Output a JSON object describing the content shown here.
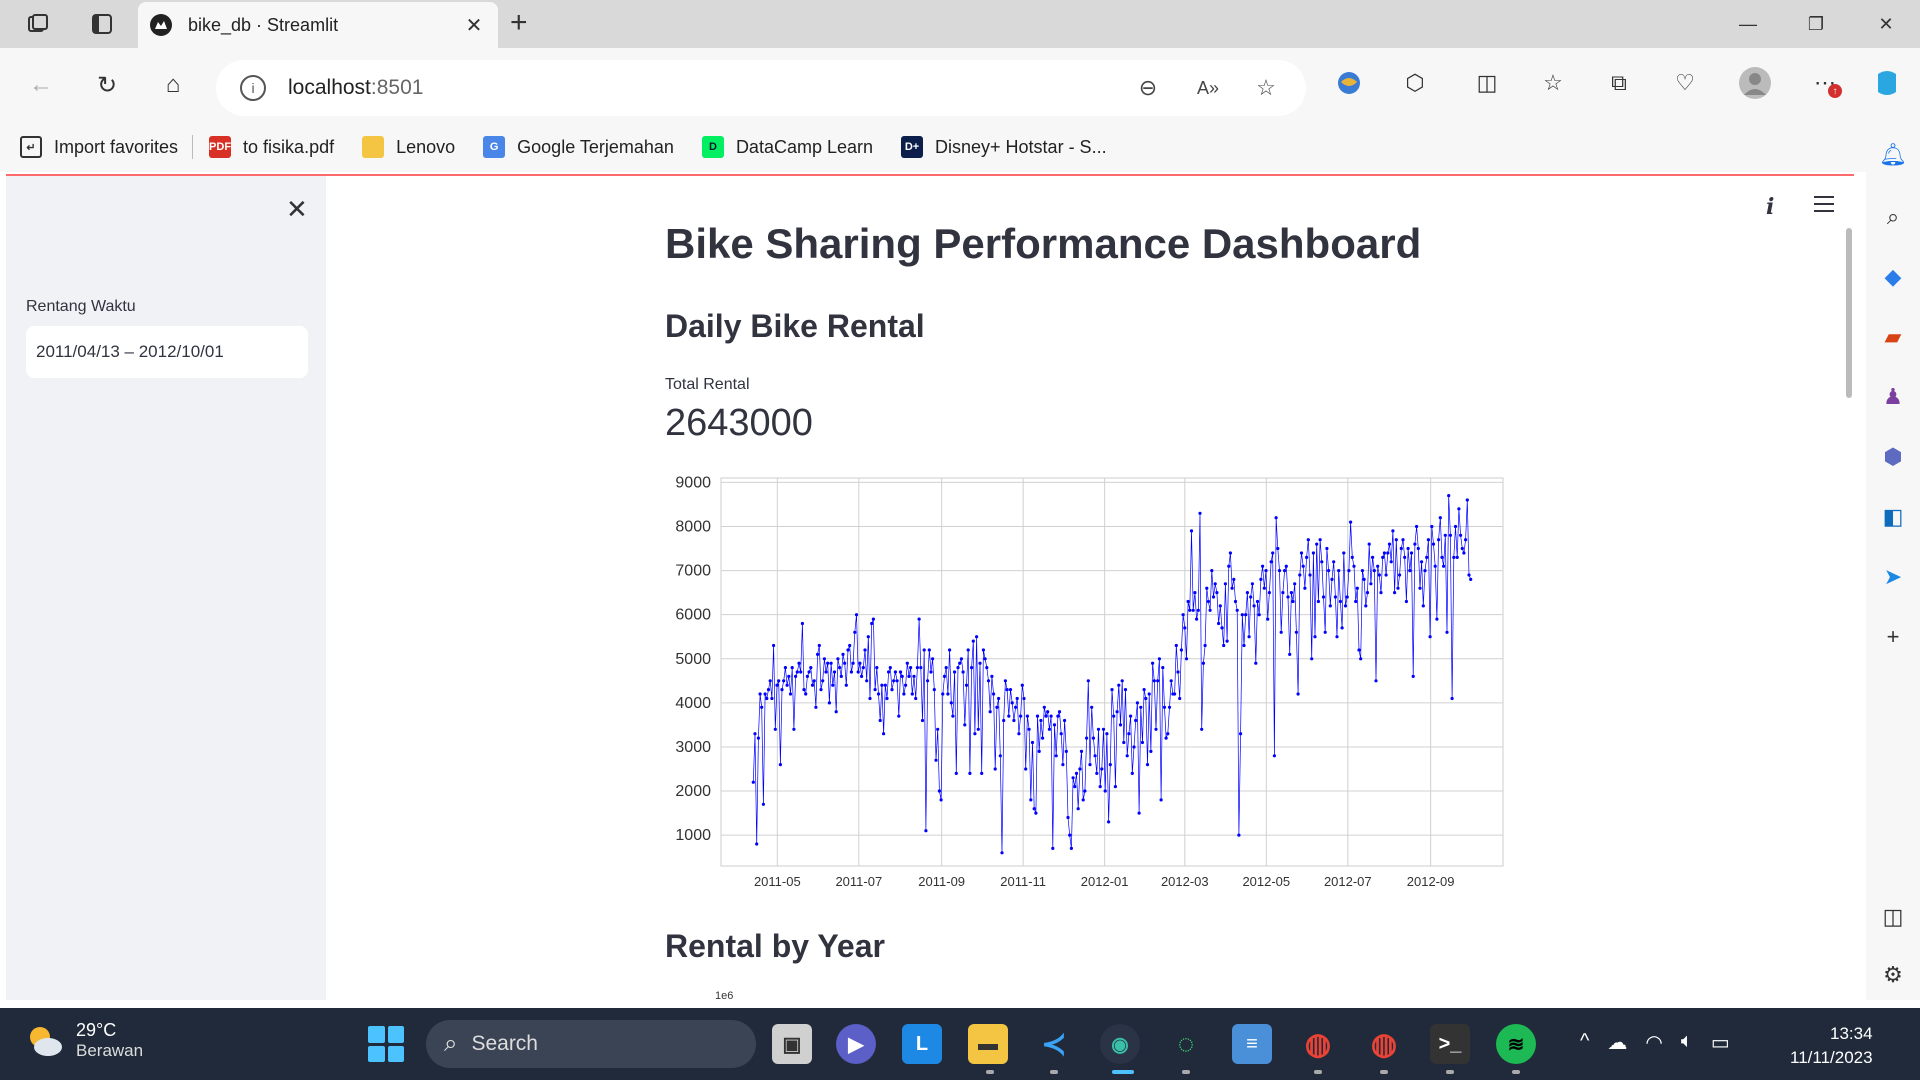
{
  "browser": {
    "tab_title": "bike_db · Streamlit",
    "url_host": "localhost",
    "url_port": ":8501",
    "bookmarks": [
      {
        "label": "Import favorites",
        "icon": "import-icon"
      },
      {
        "label": "to fisika.pdf",
        "icon": "pdf-icon"
      },
      {
        "label": "Lenovo",
        "icon": "folder-icon"
      },
      {
        "label": "Google Terjemahan",
        "icon": "google-translate-icon"
      },
      {
        "label": "DataCamp Learn",
        "icon": "datacamp-icon"
      },
      {
        "label": "Disney+ Hotstar - S...",
        "icon": "hotstar-icon"
      }
    ]
  },
  "sidebar": {
    "label": "Rentang Waktu",
    "date_range": "2011/04/13 – 2012/10/01"
  },
  "main": {
    "title": "Bike Sharing Performance Dashboard",
    "section_daily": "Daily Bike Rental",
    "metric_label": "Total Rental",
    "metric_value": "2643000",
    "section_year": "Rental by Year",
    "year_chart_offset": "1e6"
  },
  "chart_data": {
    "type": "line",
    "title": "",
    "xlabel": "",
    "ylabel": "",
    "x_start": "2011-04-13",
    "x_end": "2012-10-01",
    "x_tick_labels": [
      "2011-05",
      "2011-07",
      "2011-09",
      "2011-11",
      "2012-01",
      "2012-03",
      "2012-05",
      "2012-07",
      "2012-09"
    ],
    "y_ticks": [
      1000,
      2000,
      3000,
      4000,
      5000,
      6000,
      7000,
      8000,
      9000
    ],
    "ylim": [
      300,
      9100
    ],
    "grid": true,
    "marker": "o",
    "color": "#0000ff",
    "series": [
      {
        "values": [
          2200,
          3300,
          800,
          3200,
          4200,
          3900,
          1700,
          4200,
          4100,
          4300,
          4500,
          4100,
          5300,
          3400,
          4400,
          4500,
          2600,
          4300,
          4500,
          4800,
          4400,
          4600,
          4200,
          4800,
          3400,
          4600,
          4700,
          4900,
          4700,
          5800,
          4300,
          4200,
          4600,
          4700,
          4800,
          4400,
          4500,
          3900,
          5100,
          5300,
          4300,
          4500,
          5000,
          4700,
          4900,
          4000,
          4900,
          4400,
          4700,
          3800,
          5000,
          4800,
          4600,
          5100,
          4900,
          4400,
          5200,
          5300,
          4700,
          4900,
          5600,
          6000,
          4700,
          4900,
          4600,
          4800,
          5200,
          4500,
          5500,
          4100,
          5800,
          5900,
          4300,
          4800,
          4200,
          3600,
          4400,
          3300,
          4400,
          4100,
          4700,
          4800,
          4300,
          4500,
          4700,
          4500,
          3700,
          4700,
          4600,
          4200,
          4400,
          4900,
          4600,
          4800,
          4200,
          4600,
          4100,
          4800,
          5900,
          4800,
          3600,
          5200,
          1100,
          4500,
          5200,
          4700,
          5000,
          4300,
          2700,
          3400,
          2000,
          1800,
          4200,
          4600,
          4800,
          4200,
          5200,
          4000,
          3700,
          4700,
          2400,
          4800,
          4900,
          5000,
          4700,
          3500,
          4400,
          5200,
          2400,
          4800,
          5400,
          3300,
          5500,
          3400,
          4900,
          2400,
          5200,
          5000,
          4800,
          4500,
          3800,
          4600,
          4200,
          2500,
          3900,
          4100,
          2800,
          600,
          3600,
          4500,
          4300,
          3700,
          4300,
          4000,
          3600,
          3900,
          4100,
          3300,
          3700,
          4400,
          4100,
          2500,
          3700,
          3400,
          1800,
          3100,
          1600,
          1500,
          3700,
          2900,
          3600,
          3200,
          3900,
          3700,
          3800,
          3400,
          3700,
          700,
          3500,
          2800,
          3700,
          3800,
          3300,
          2600,
          3600,
          2900,
          1400,
          1000,
          700,
          2300,
          2100,
          2400,
          1600,
          2500,
          2900,
          1800,
          2000,
          3200,
          4500,
          2600,
          3900,
          3200,
          2800,
          2400,
          3400,
          2100,
          2500,
          3400,
          2000,
          3300,
          1300,
          2600,
          4300,
          3700,
          2100,
          3800,
          4400,
          3500,
          4500,
          3100,
          4300,
          2800,
          3300,
          3700,
          2400,
          3000,
          3600,
          4000,
          1500,
          3900,
          3100,
          4300,
          4100,
          2600,
          4200,
          2900,
          4900,
          4500,
          3400,
          4500,
          5000,
          1800,
          4800,
          3900,
          3200,
          3300,
          3900,
          4500,
          4200,
          4200,
          5300,
          4700,
          4100,
          5200,
          6000,
          5700,
          5000,
          6300,
          6100,
          7900,
          6100,
          6500,
          5900,
          6100,
          8300,
          3400,
          4900,
          5300,
          6600,
          6300,
          6100,
          7000,
          6400,
          6700,
          6500,
          5800,
          6200,
          5700,
          5300,
          6700,
          5400,
          7100,
          7400,
          6600,
          6800,
          6300,
          6100,
          1000,
          3300,
          6000,
          5300,
          6000,
          6500,
          5500,
          6400,
          6700,
          6200,
          4900,
          6300,
          6000,
          6800,
          7100,
          6600,
          7000,
          5900,
          6500,
          7200,
          7400,
          2800,
          8200,
          7500,
          7000,
          5600,
          6500,
          7000,
          7100,
          6400,
          5100,
          6500,
          6300,
          6700,
          5600,
          4200,
          6900,
          7400,
          7100,
          6600,
          7300,
          7700,
          6900,
          5000,
          7400,
          5500,
          7600,
          6300,
          7700,
          7200,
          6400,
          5600,
          7500,
          7000,
          6200,
          6800,
          7200,
          6400,
          5500,
          7000,
          6300,
          5700,
          7400,
          6200,
          6400,
          7000,
          8100,
          7300,
          7100,
          6300,
          6600,
          5200,
          5000,
          7000,
          6800,
          6200,
          6500,
          7600,
          6700,
          7300,
          7000,
          4500,
          7100,
          6900,
          6500,
          7300,
          7400,
          6900,
          7400,
          7600,
          7200,
          7900,
          6500,
          7700,
          6600,
          6900,
          7500,
          7700,
          7300,
          6300,
          7500,
          7000,
          7400,
          4600,
          7600,
          8000,
          7500,
          6600,
          7200,
          6200,
          7000,
          7300,
          7700,
          5500,
          8000,
          7600,
          7100,
          5900,
          7700,
          8200,
          7300,
          7100,
          7800,
          5600,
          8700,
          7800,
          4100,
          7300,
          8000,
          7300,
          8400,
          7800,
          7500,
          7400,
          7700,
          8600,
          6900,
          6800
        ]
      }
    ]
  },
  "taskbar": {
    "temp": "29°C",
    "weather": "Berawan",
    "search_placeholder": "Search",
    "time": "13:34",
    "date": "11/11/2023"
  }
}
